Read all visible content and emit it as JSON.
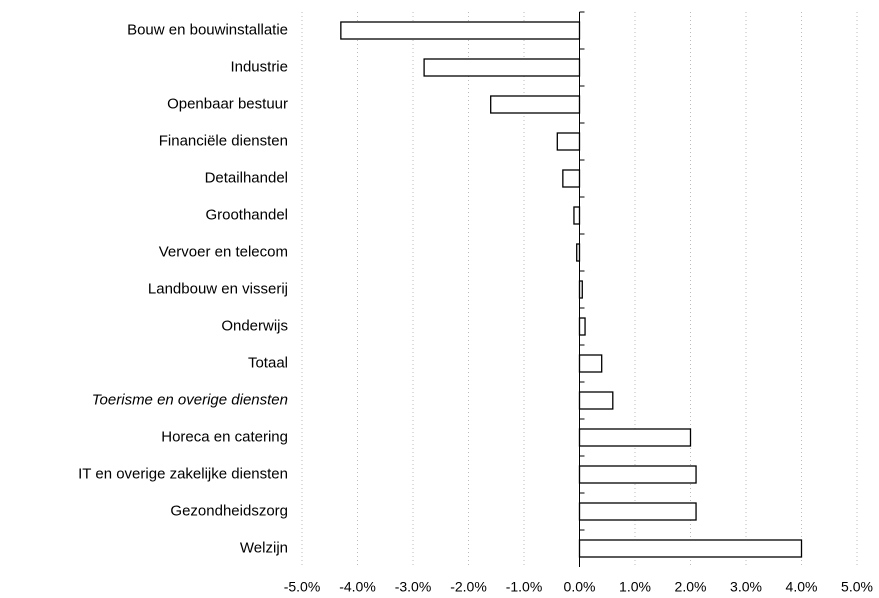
{
  "chart_data": {
    "type": "barh",
    "categories": [
      "Bouw en bouwinstallatie",
      "Industrie",
      "Openbaar bestuur",
      "Financiële diensten",
      "Detailhandel",
      "Groothandel",
      "Vervoer en telecom",
      "Landbouw en visserij",
      "Onderwijs",
      "Totaal",
      "Toerisme en overige diensten",
      "Horeca en catering",
      "IT en overige zakelijke diensten",
      "Gezondheidszorg",
      "Welzijn"
    ],
    "values": [
      -4.3,
      -2.8,
      -1.6,
      -0.4,
      -0.3,
      -0.1,
      -0.05,
      0.05,
      0.1,
      0.4,
      0.6,
      2.0,
      2.1,
      2.1,
      4.0
    ],
    "color": "#ffffff",
    "xlim": [
      -5,
      5
    ],
    "xticks": [
      {
        "value": -5,
        "label": "-5.0%"
      },
      {
        "value": -4,
        "label": "-4.0%"
      },
      {
        "value": -3,
        "label": "-3.0%"
      },
      {
        "value": -2,
        "label": "-2.0%"
      },
      {
        "value": -1,
        "label": "-1.0%"
      },
      {
        "value": 0,
        "label": "0.0%"
      },
      {
        "value": 1,
        "label": "1.0%"
      },
      {
        "value": 2,
        "label": "2.0%"
      },
      {
        "value": 3,
        "label": "3.0%"
      },
      {
        "value": 4,
        "label": "4.0%"
      },
      {
        "value": 5,
        "label": "5.0%"
      }
    ],
    "grid": true
  }
}
